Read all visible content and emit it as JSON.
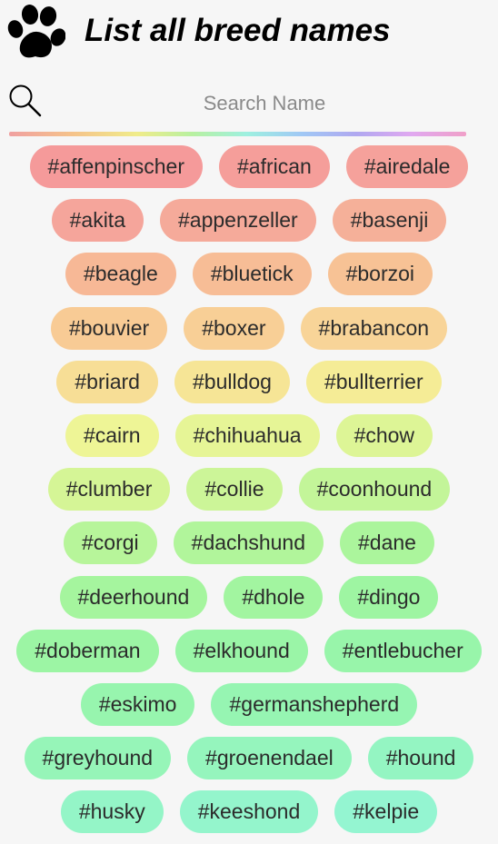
{
  "header": {
    "title": "List all breed names",
    "logo_icon": "paw-icon"
  },
  "search": {
    "icon": "search-icon",
    "placeholder": "Search Name",
    "value": ""
  },
  "tag_rows": [
    [
      {
        "label": "#affenpinscher",
        "color": "#f59a9a"
      },
      {
        "label": "#african",
        "color": "#f59e9a"
      },
      {
        "label": "#airedale",
        "color": "#f5a19b"
      }
    ],
    [
      {
        "label": "#akita",
        "color": "#f5a59b"
      },
      {
        "label": "#appenzeller",
        "color": "#f5aa9a"
      },
      {
        "label": "#basenji",
        "color": "#f5b099"
      }
    ],
    [
      {
        "label": "#beagle",
        "color": "#f7b896"
      },
      {
        "label": "#bluetick",
        "color": "#f7bd96"
      },
      {
        "label": "#borzoi",
        "color": "#f7c295"
      }
    ],
    [
      {
        "label": "#bouvier",
        "color": "#f8cb95"
      },
      {
        "label": "#boxer",
        "color": "#f8cf96"
      },
      {
        "label": "#brabancon",
        "color": "#f8d498"
      }
    ],
    [
      {
        "label": "#briard",
        "color": "#f7de96"
      },
      {
        "label": "#bulldog",
        "color": "#f6e596"
      },
      {
        "label": "#bullterrier",
        "color": "#f5ec96"
      }
    ],
    [
      {
        "label": "#cairn",
        "color": "#eef596"
      },
      {
        "label": "#chihuahua",
        "color": "#e6f596"
      },
      {
        "label": "#chow",
        "color": "#ddf596"
      }
    ],
    [
      {
        "label": "#clumber",
        "color": "#d5f596"
      },
      {
        "label": "#collie",
        "color": "#ccf598"
      },
      {
        "label": "#coonhound",
        "color": "#c3f599"
      }
    ],
    [
      {
        "label": "#corgi",
        "color": "#b7f59a"
      },
      {
        "label": "#dachshund",
        "color": "#b1f59b"
      },
      {
        "label": "#dane",
        "color": "#abf59c"
      }
    ],
    [
      {
        "label": "#deerhound",
        "color": "#a5f59e"
      },
      {
        "label": "#dhole",
        "color": "#a2f5a0"
      },
      {
        "label": "#dingo",
        "color": "#9ef5a2"
      }
    ],
    [
      {
        "label": "#doberman",
        "color": "#9cf5a4"
      },
      {
        "label": "#elkhound",
        "color": "#9af5a7"
      },
      {
        "label": "#entlebucher",
        "color": "#98f5aa"
      }
    ],
    [
      {
        "label": "#eskimo",
        "color": "#97f5ae"
      },
      {
        "label": "#germanshepherd",
        "color": "#96f5b2"
      }
    ],
    [
      {
        "label": "#greyhound",
        "color": "#96f5b8"
      },
      {
        "label": "#groenendael",
        "color": "#95f5bd"
      },
      {
        "label": "#hound",
        "color": "#94f5c2"
      }
    ],
    [
      {
        "label": "#husky",
        "color": "#94f5c7"
      },
      {
        "label": "#keeshond",
        "color": "#94f5cc"
      },
      {
        "label": "#kelpie",
        "color": "#94f5d1"
      }
    ]
  ]
}
